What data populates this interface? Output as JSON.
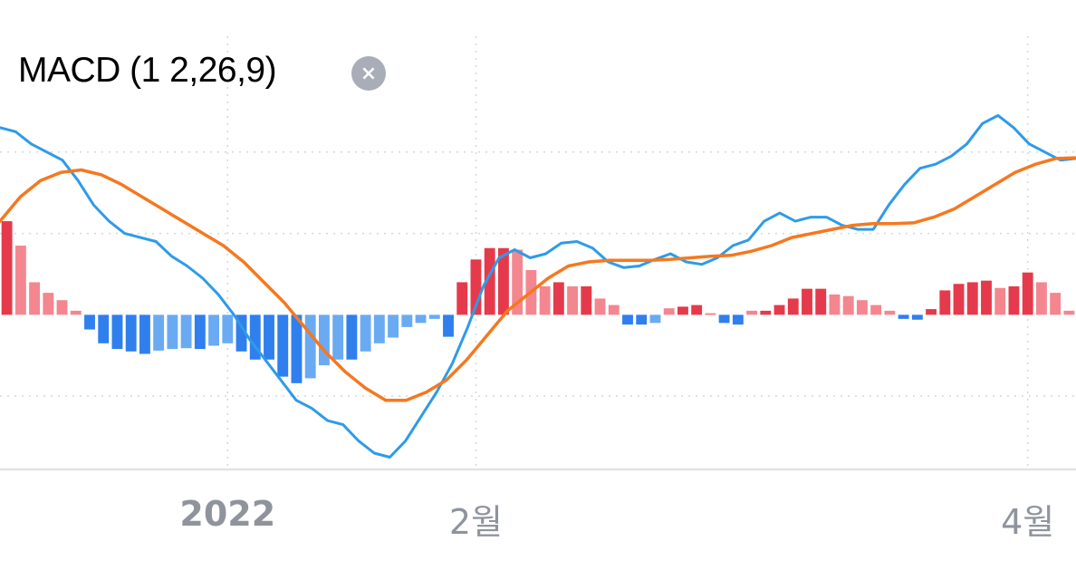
{
  "indicator": {
    "label": "MACD (1 2,26,9)",
    "close_icon": "close-icon",
    "close_glyph": "×"
  },
  "colors": {
    "macd_line": "#2e9be8",
    "signal_line": "#f5781f",
    "hist_pos_dark": "#e53a4b",
    "hist_pos_light": "#f4868f",
    "hist_neg_dark": "#2f7fee",
    "hist_neg_light": "#6aaaf2",
    "grid": "#d3d7dd",
    "axis": "#dfe2e6",
    "tick_text": "#8f949c"
  },
  "chart_data": {
    "type": "line",
    "title": "MACD (1 2,26,9)",
    "xlabel": "",
    "ylabel": "",
    "x_tick_labels": [
      "2022",
      "2월",
      "4월"
    ],
    "x_tick_index": [
      16,
      34,
      74
    ],
    "grid": true,
    "ylim": [
      -1.9,
      3.2
    ],
    "histogram": [
      1.15,
      0.85,
      0.4,
      0.27,
      0.18,
      0.05,
      0.18,
      0.35,
      0.42,
      0.45,
      0.48,
      0.44,
      0.42,
      0.41,
      0.42,
      0.38,
      0.35,
      0.45,
      0.55,
      0.55,
      0.76,
      0.84,
      0.78,
      0.62,
      0.55,
      0.55,
      0.45,
      0.35,
      0.28,
      0.15,
      0.1,
      0.05,
      0.27,
      0.4,
      0.68,
      0.82,
      0.82,
      0.8,
      0.55,
      0.35,
      0.4,
      0.35,
      0.35,
      0.2,
      0.12,
      0.12,
      0.12,
      0.1,
      0.08,
      0.1,
      0.12,
      0.02,
      0.1,
      0.12,
      0.05,
      0.05,
      0.12,
      0.2,
      0.32,
      0.32,
      0.25,
      0.23,
      0.18,
      0.12,
      0.05,
      0.05,
      0.06,
      0.07,
      0.3,
      0.38,
      0.4,
      0.42,
      0.33,
      0.35,
      0.52,
      0.4,
      0.27,
      0.05
    ],
    "histogram_sign": [
      1,
      1,
      1,
      1,
      1,
      1,
      -1,
      -1,
      -1,
      -1,
      -1,
      -1,
      -1,
      -1,
      -1,
      -1,
      -1,
      -1,
      -1,
      -1,
      -1,
      -1,
      -1,
      -1,
      -1,
      -1,
      -1,
      -1,
      -1,
      -1,
      -1,
      -1,
      -1,
      1,
      1,
      1,
      1,
      1,
      1,
      1,
      1,
      1,
      1,
      1,
      1,
      -1,
      -1,
      -1,
      1,
      1,
      1,
      1,
      -1,
      -1,
      1,
      1,
      1,
      1,
      1,
      1,
      1,
      1,
      1,
      1,
      1,
      -1,
      -1,
      1,
      1,
      1,
      1,
      1,
      1,
      1,
      1,
      1,
      1,
      1
    ],
    "series": [
      {
        "values": [
          2.3,
          2.25,
          2.1,
          2.0,
          1.9,
          1.65,
          1.35,
          1.15,
          1.0,
          0.95,
          0.9,
          0.72,
          0.6,
          0.45,
          0.25,
          0.0,
          -0.3,
          -0.55,
          -0.8,
          -1.05,
          -1.15,
          -1.3,
          -1.35,
          -1.55,
          -1.7,
          -1.75,
          -1.55,
          -1.25,
          -0.95,
          -0.6,
          -0.15,
          0.35,
          0.7,
          0.8,
          0.7,
          0.75,
          0.88,
          0.9,
          0.82,
          0.65,
          0.58,
          0.6,
          0.68,
          0.75,
          0.65,
          0.62,
          0.7,
          0.85,
          0.92,
          1.15,
          1.25,
          1.15,
          1.2,
          1.2,
          1.1,
          1.05,
          1.05,
          1.35,
          1.6,
          1.8,
          1.85,
          1.95,
          2.1,
          2.35,
          2.45,
          2.3,
          2.1,
          2.0,
          1.9,
          1.92
        ]
      },
      {
        "values": [
          1.15,
          1.45,
          1.65,
          1.75,
          1.78,
          1.72,
          1.6,
          1.45,
          1.3,
          1.15,
          1.0,
          0.85,
          0.65,
          0.4,
          0.15,
          -0.15,
          -0.45,
          -0.7,
          -0.9,
          -1.05,
          -1.05,
          -0.95,
          -0.8,
          -0.55,
          -0.25,
          0.05,
          0.25,
          0.45,
          0.6,
          0.65,
          0.67,
          0.67,
          0.67,
          0.68,
          0.7,
          0.72,
          0.73,
          0.78,
          0.85,
          0.95,
          1.0,
          1.05,
          1.1,
          1.12,
          1.12,
          1.13,
          1.2,
          1.3,
          1.45,
          1.6,
          1.75,
          1.85,
          1.92,
          1.93
        ]
      }
    ]
  }
}
